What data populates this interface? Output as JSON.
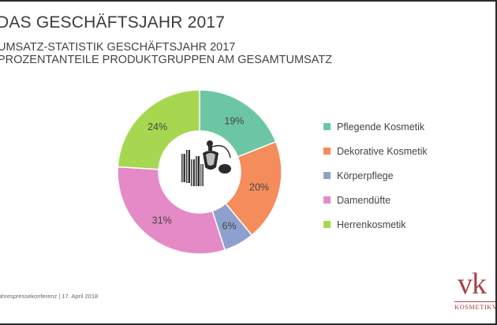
{
  "slide": {
    "title": "DAS GESCHÄFTSJAHR 2017",
    "subtitle_line1": "UMSATZ-STATISTIK GESCHÄFTSJAHR 2017",
    "subtitle_line2": "PROZENTANTEILE PRODUKTGRUPPEN AM GESAMTUMSATZ",
    "footer": "ahrespressekonferenz | 17. April 2018",
    "logo_mark": "vk",
    "logo_text": "KOSMETIKV"
  },
  "chart_data": {
    "type": "pie",
    "variant": "donut",
    "legend_position": "right",
    "center_image": "perfume-bottles-icon",
    "slices": [
      {
        "name": "Pflegende Kosmetik",
        "value": 19,
        "label": "19%",
        "color": "#6cc6a4"
      },
      {
        "name": "Dekorative Kosmetik",
        "value": 20,
        "label": "20%",
        "color": "#f58c5b"
      },
      {
        "name": "Körperpflege",
        "value": 6,
        "label": "6%",
        "color": "#8ea0cd"
      },
      {
        "name": "Damendüfte",
        "value": 31,
        "label": "31%",
        "color": "#e48ac7"
      },
      {
        "name": "Herrenkosmetik",
        "value": 24,
        "label": "24%",
        "color": "#a7d750"
      }
    ]
  }
}
